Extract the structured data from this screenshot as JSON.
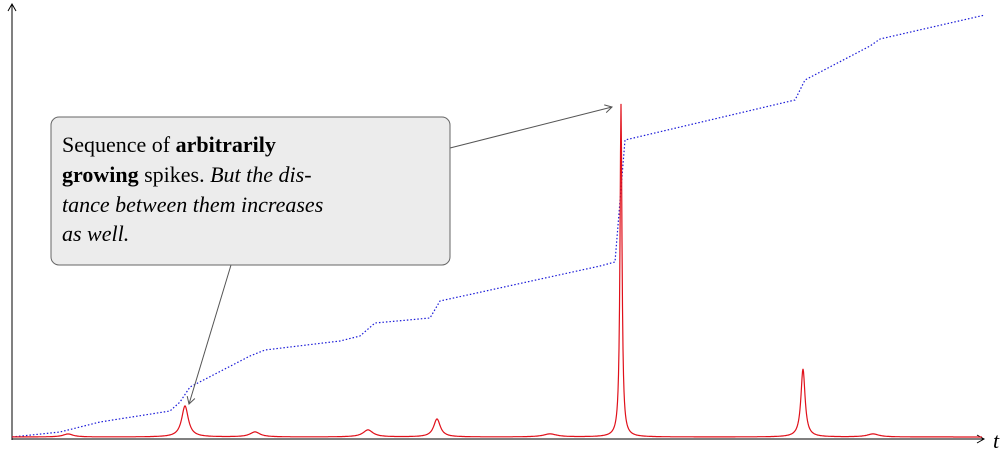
{
  "axis_label": "t",
  "annotation": {
    "lines": [
      [
        "Sequence of ",
        "arbitrarily"
      ],
      [
        "growing",
        " spikes. ",
        "But the dis-"
      ],
      [
        "tance between them increases"
      ],
      [
        "as well."
      ]
    ]
  }
}
